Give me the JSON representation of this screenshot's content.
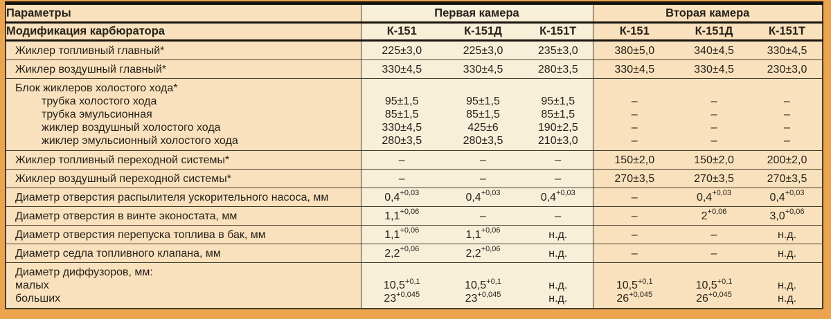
{
  "colors": {
    "page_background": "#eca44f",
    "peach_cell": "#fae1bd",
    "cream_cell": "#f8efd9",
    "text": "#26221a",
    "thick_rule": "#17130d",
    "thin_rule": "#453c2c"
  },
  "table": {
    "header": {
      "col1": "Параметры",
      "group1": "Первая камера",
      "group2": "Вторая камера",
      "modification_label": "Модификация карбюратора",
      "models": [
        "К-151",
        "К-151Д",
        "К-151Т",
        "К-151",
        "К-151Д",
        "К-151Т"
      ]
    },
    "rows": [
      {
        "label_lines": [
          {
            "text": "Жиклер топливный главный*",
            "indent": false
          }
        ],
        "cells": [
          [
            "225±3,0"
          ],
          [
            "225±3,0"
          ],
          [
            "235±3,0"
          ],
          [
            "380±5,0"
          ],
          [
            "340±4,5"
          ],
          [
            "330±4,5"
          ]
        ]
      },
      {
        "label_lines": [
          {
            "text": "Жиклер воздушный главный*",
            "indent": false
          }
        ],
        "cells": [
          [
            "330±4,5"
          ],
          [
            "330±4,5"
          ],
          [
            "280±3,5"
          ],
          [
            "330±4,5"
          ],
          [
            "330±4,5"
          ],
          [
            "230±3,0"
          ]
        ]
      },
      {
        "tall": true,
        "label_lines": [
          {
            "text": "Блок жиклеров холостого хода*",
            "indent": false
          },
          {
            "text": "трубка холостого хода",
            "indent": true
          },
          {
            "text": "трубка эмульсионная",
            "indent": true
          },
          {
            "text": "жиклер воздушный холостого хода",
            "indent": true
          },
          {
            "text": "жиклер эмульсионный холостого хода",
            "indent": true
          }
        ],
        "cells": [
          [
            "",
            "95±1,5",
            "85±1,5",
            "330±4,5",
            "280±3,5"
          ],
          [
            "",
            "95±1,5",
            "85±1,5",
            "425±6",
            "280±3,5"
          ],
          [
            "",
            "95±1,5",
            "85±1,5",
            "190±2,5",
            "210±3,0"
          ],
          [
            "",
            "–",
            "–",
            "–",
            "–"
          ],
          [
            "",
            "–",
            "–",
            "–",
            "–"
          ],
          [
            "",
            "–",
            "–",
            "–",
            "–"
          ]
        ]
      },
      {
        "label_lines": [
          {
            "text": "Жиклер топливный переходной системы*",
            "indent": false
          }
        ],
        "cells": [
          [
            "–"
          ],
          [
            "–"
          ],
          [
            "–"
          ],
          [
            "150±2,0"
          ],
          [
            "150±2,0"
          ],
          [
            "200±2,0"
          ]
        ]
      },
      {
        "label_lines": [
          {
            "text": "Жиклер воздушный переходной системы*",
            "indent": false
          }
        ],
        "cells": [
          [
            "–"
          ],
          [
            "–"
          ],
          [
            "–"
          ],
          [
            "270±3,5"
          ],
          [
            "270±3,5"
          ],
          [
            "270±3,5"
          ]
        ]
      },
      {
        "label_lines": [
          {
            "text": "Диаметр отверстия распылителя ускорительного насоса, мм",
            "indent": false
          }
        ],
        "cells": [
          [
            "0,4^+0,03"
          ],
          [
            "0,4^+0,03"
          ],
          [
            "0,4^+0,03"
          ],
          [
            "–"
          ],
          [
            "0,4^+0,03"
          ],
          [
            "0,4^+0,03"
          ]
        ]
      },
      {
        "label_lines": [
          {
            "text": "Диаметр отверстия в винте эконостата, мм",
            "indent": false
          }
        ],
        "cells": [
          [
            "1,1^+0,06"
          ],
          [
            "–"
          ],
          [
            "–"
          ],
          [
            "–"
          ],
          [
            "2^+0,06"
          ],
          [
            "3,0^+0,06"
          ]
        ]
      },
      {
        "label_lines": [
          {
            "text": "Диаметр отверстия перепуска топлива в бак, мм",
            "indent": false
          }
        ],
        "cells": [
          [
            "1,1^+0,06"
          ],
          [
            "1,1^+0,06"
          ],
          [
            "н.д."
          ],
          [
            "–"
          ],
          [
            "–"
          ],
          [
            "н.д."
          ]
        ]
      },
      {
        "label_lines": [
          {
            "text": "Диаметр седла топливного клапана, мм",
            "indent": false
          }
        ],
        "cells": [
          [
            "2,2^+0,06"
          ],
          [
            "2,2^+0,06"
          ],
          [
            "н.д."
          ],
          [
            "–"
          ],
          [
            "–"
          ],
          [
            "н.д."
          ]
        ]
      },
      {
        "tall": true,
        "label_lines": [
          {
            "text": "Диаметр диффузоров, мм:",
            "indent": false
          },
          {
            "text": "малых",
            "indent": false
          },
          {
            "text": "больших",
            "indent": false
          }
        ],
        "cells": [
          [
            "",
            "10,5^+0,1",
            "23^+0,045"
          ],
          [
            "",
            "10,5^+0,1",
            "23^+0,045"
          ],
          [
            "",
            "н.д.",
            "н.д."
          ],
          [
            "",
            "10,5^+0,1",
            "26^+0,045"
          ],
          [
            "",
            "10,5^+0,1",
            "26^+0,045"
          ],
          [
            "",
            "н.д.",
            "н.д."
          ]
        ]
      }
    ]
  }
}
